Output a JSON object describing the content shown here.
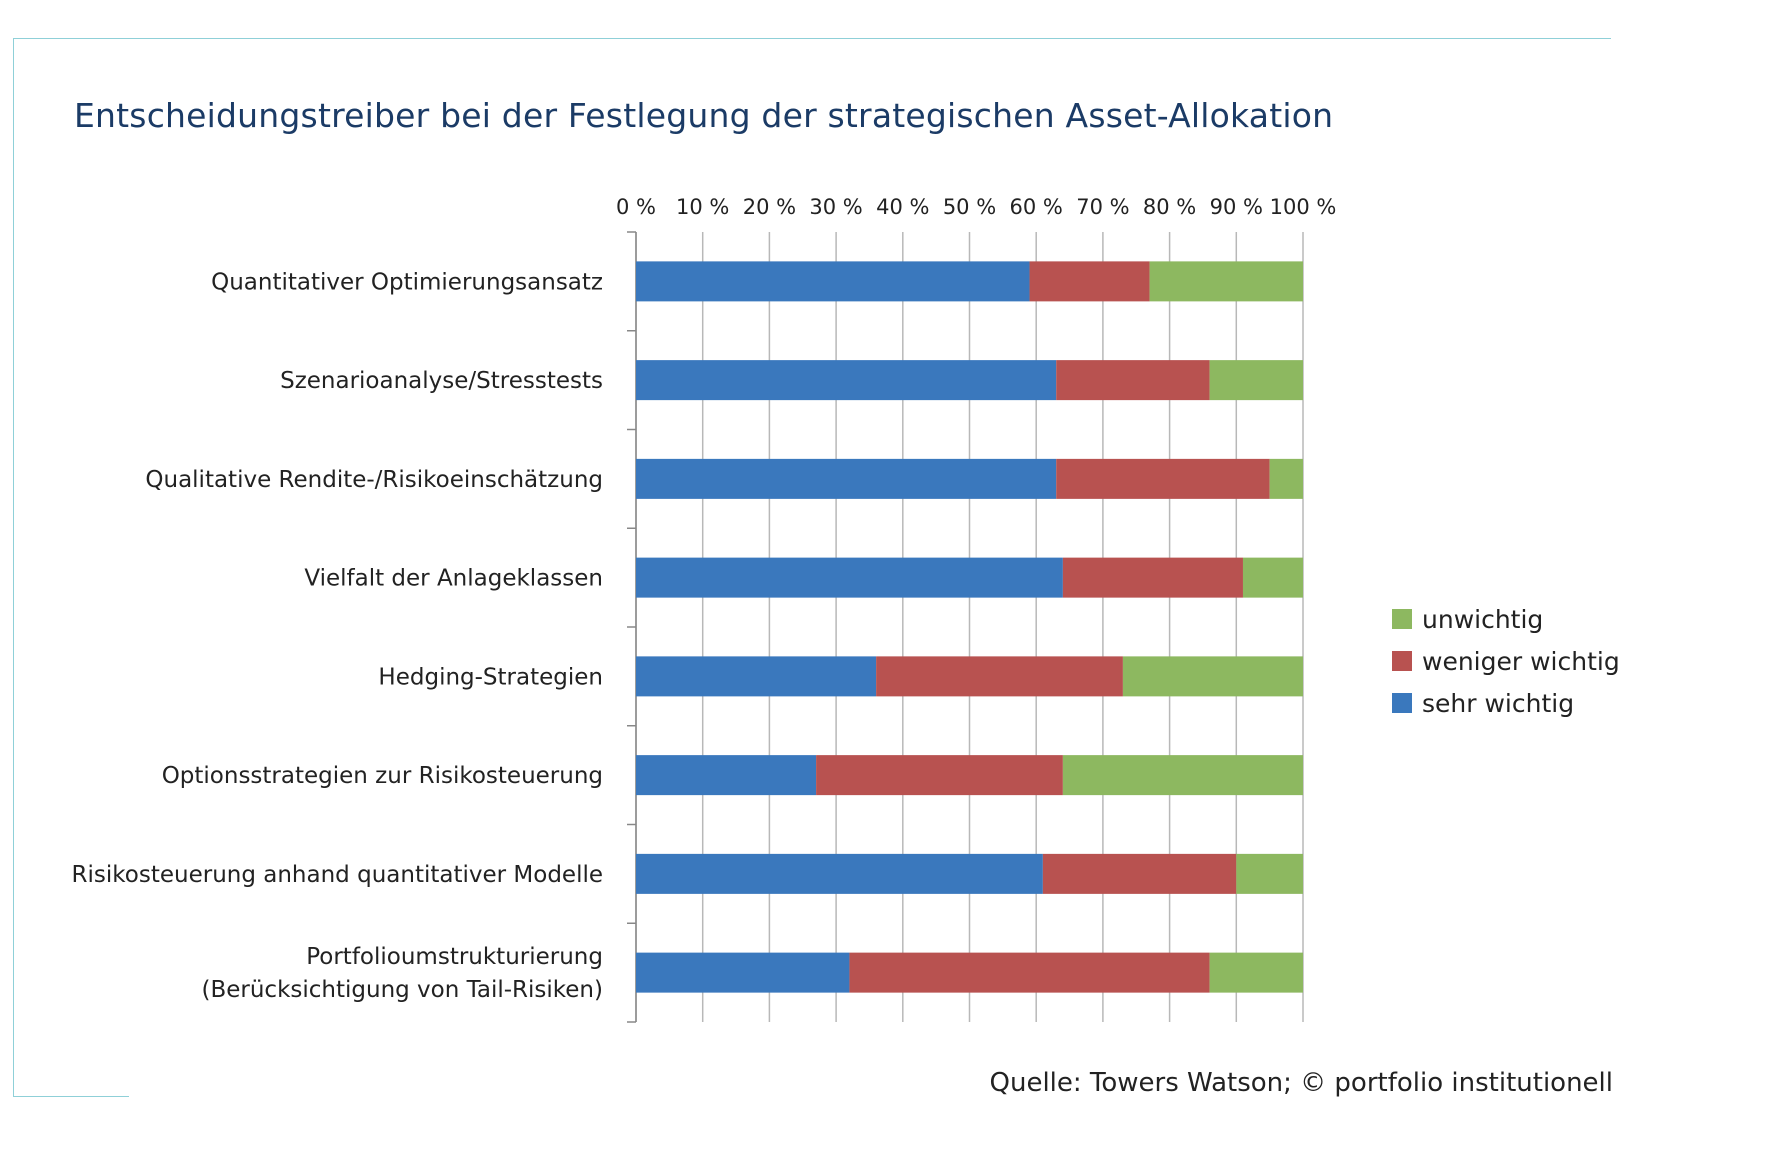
{
  "title": "Entscheidungstreiber bei der Festlegung der strategischen Asset-Allokation",
  "source": "Quelle: Towers Watson; © portfolio institutionell",
  "colors": {
    "sehr_wichtig": "#3a78bd",
    "weniger_wichtig": "#b85250",
    "unwichtig": "#8db860",
    "grid": "#b8b8b8",
    "frame": "#8fd0d8"
  },
  "legend": [
    {
      "label": "unwichtig",
      "color": "#8db860"
    },
    {
      "label": "weniger wichtig",
      "color": "#b85250"
    },
    {
      "label": "sehr wichtig",
      "color": "#3a78bd"
    }
  ],
  "chart_data": {
    "type": "bar",
    "orientation": "horizontal",
    "stacked": "percent",
    "title": "Entscheidungstreiber bei der Festlegung der strategischen Asset-Allokation",
    "x_ticks": [
      "0 %",
      "10 %",
      "20 %",
      "30 %",
      "40 %",
      "50 %",
      "60 %",
      "70 %",
      "80 %",
      "90 %",
      "100 %"
    ],
    "xlim": [
      0,
      100
    ],
    "x_axis_position": "top",
    "grid": true,
    "legend_position": "right",
    "categories": [
      [
        "Quantitativer Optimierungsansatz"
      ],
      [
        "Szenarioanalyse/Stresstests"
      ],
      [
        "Qualitative Rendite-/Risikoeinschätzung"
      ],
      [
        "Vielfalt der Anlageklassen"
      ],
      [
        "Hedging-Strategien"
      ],
      [
        "Optionsstrategien zur Risikosteuerung"
      ],
      [
        "Risikosteuerung anhand quantitativer Modelle"
      ],
      [
        "Portfolioumstrukturierung",
        "(Berücksichtigung von Tail-Risiken)"
      ]
    ],
    "series": [
      {
        "name": "sehr wichtig",
        "color": "#3a78bd",
        "values": [
          59,
          63,
          63,
          64,
          36,
          27,
          61,
          32
        ]
      },
      {
        "name": "weniger wichtig",
        "color": "#b85250",
        "values": [
          18,
          23,
          32,
          27,
          37,
          37,
          29,
          54
        ]
      },
      {
        "name": "unwichtig",
        "color": "#8db860",
        "values": [
          23,
          14,
          5,
          9,
          27,
          36,
          10,
          14
        ]
      }
    ]
  }
}
